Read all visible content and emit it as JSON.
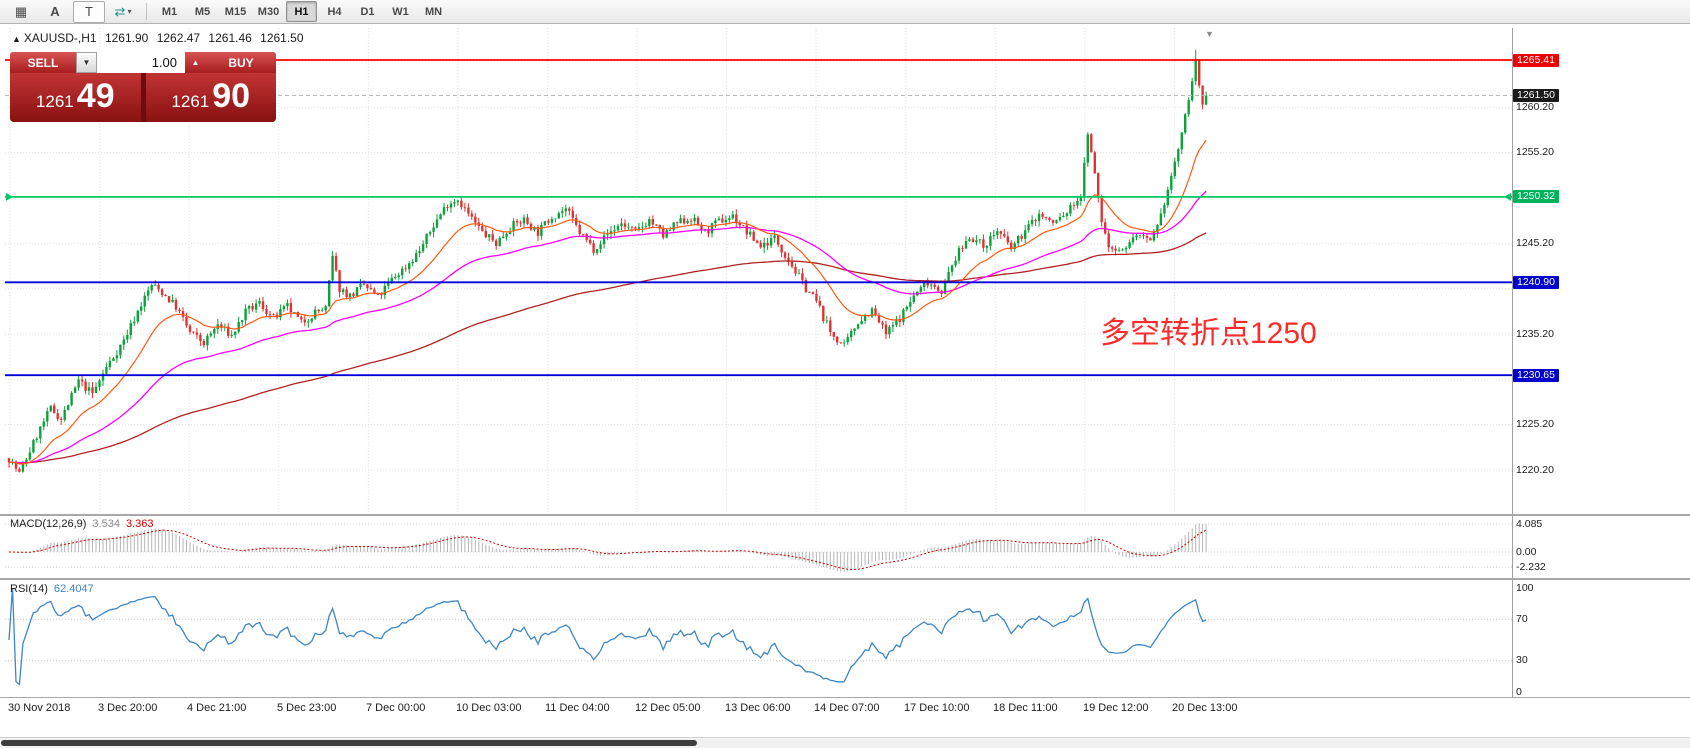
{
  "toolbar": {
    "icons": [
      {
        "name": "grid-icon",
        "glyph": "▦"
      },
      {
        "name": "font-icon",
        "glyph": "A"
      },
      {
        "name": "text-label-icon",
        "glyph": "T"
      },
      {
        "name": "cycle-arrows-icon",
        "glyph": "⇄",
        "caret": "▾"
      }
    ],
    "timeframes": [
      {
        "label": "M1",
        "active": false
      },
      {
        "label": "M5",
        "active": false
      },
      {
        "label": "M15",
        "active": false
      },
      {
        "label": "M30",
        "active": false
      },
      {
        "label": "H1",
        "active": true
      },
      {
        "label": "H4",
        "active": false
      },
      {
        "label": "D1",
        "active": false
      },
      {
        "label": "W1",
        "active": false
      },
      {
        "label": "MN",
        "active": false
      }
    ]
  },
  "chart": {
    "header": {
      "direction_arrow": "▲",
      "symbol_period": "XAUUSD-,H1",
      "open": "1261.90",
      "high": "1262.47",
      "low": "1261.46",
      "close": "1261.50"
    },
    "shift_marker_glyph": "▼",
    "trade_panel": {
      "sell_label": "SELL",
      "buy_label": "BUY",
      "volume": "1.00",
      "decrease_icon": "▼",
      "increase_icon": "▲",
      "sell_price_main": "1261",
      "sell_price_pips": "49",
      "buy_price_main": "1261",
      "buy_price_pips": "90"
    },
    "annotation": {
      "text": "多空转折点1250",
      "color": "#ff2b2b"
    }
  },
  "macd": {
    "name": "MACD(12,26,9)",
    "main_value": "3.534",
    "signal_value": "3.363",
    "scale": [
      "4.085",
      "0.00",
      "-2.232"
    ]
  },
  "rsi": {
    "name": "RSI(14)",
    "value": "62.4047",
    "scale": [
      "100",
      "70",
      "30",
      "0"
    ],
    "levels": [
      70,
      30
    ]
  },
  "colors": {
    "candle_up": "#0ca13a",
    "candle_down": "#e03232",
    "ma_fast": "#ff5a14",
    "ma_mid": "#ff00ff",
    "ma_slow": "#b22222",
    "macd_hist": "#b4b4b4",
    "macd_signal": "#d40000",
    "rsi_line": "#3e86c6",
    "grid": "#e2e2e2"
  },
  "chart_data": {
    "type": "candlestick",
    "symbol": "XAUUSD-",
    "timeframe": "H1",
    "ohlc_current": {
      "open": 1261.9,
      "high": 1262.47,
      "low": 1261.46,
      "close": 1261.5
    },
    "ylim": [
      1215.5,
      1268.9
    ],
    "y_grid_interval": 5.0,
    "grid_levels": [
      1220.2,
      1225.2,
      1230.2,
      1235.2,
      1240.2,
      1245.2,
      1250.2,
      1255.2,
      1260.2,
      1265.2
    ],
    "axis_price_labels": [
      "1260.20",
      "1255.20",
      "1245.20",
      "1235.20",
      "1225.20",
      "1220.20"
    ],
    "x_labels": [
      "30 Nov 2018",
      "3 Dec 20:00",
      "4 Dec 21:00",
      "5 Dec 23:00",
      "7 Dec 00:00",
      "10 Dec 03:00",
      "11 Dec 04:00",
      "12 Dec 05:00",
      "13 Dec 06:00",
      "14 Dec 07:00",
      "17 Dec 10:00",
      "18 Dec 11:00",
      "19 Dec 12:00",
      "20 Dec 13:00"
    ],
    "candles_count": 345,
    "price_anchors": [
      [
        0,
        1221.5
      ],
      [
        3,
        1219.8
      ],
      [
        8,
        1224.0
      ],
      [
        12,
        1227.0
      ],
      [
        15,
        1225.8
      ],
      [
        20,
        1230.0
      ],
      [
        24,
        1228.6
      ],
      [
        28,
        1231.5
      ],
      [
        33,
        1234.5
      ],
      [
        38,
        1238.5
      ],
      [
        41,
        1240.6
      ],
      [
        44,
        1239.8
      ],
      [
        48,
        1238.2
      ],
      [
        52,
        1235.4
      ],
      [
        56,
        1234.2
      ],
      [
        60,
        1236.2
      ],
      [
        64,
        1235.0
      ],
      [
        68,
        1237.6
      ],
      [
        72,
        1238.6
      ],
      [
        76,
        1236.9
      ],
      [
        80,
        1238.2
      ],
      [
        84,
        1236.4
      ],
      [
        88,
        1237.6
      ],
      [
        91,
        1238.0
      ],
      [
        93,
        1243.6
      ],
      [
        95,
        1240.2
      ],
      [
        98,
        1239.4
      ],
      [
        102,
        1240.6
      ],
      [
        106,
        1239.2
      ],
      [
        110,
        1241.2
      ],
      [
        114,
        1242.6
      ],
      [
        118,
        1244.4
      ],
      [
        122,
        1247.2
      ],
      [
        126,
        1249.6
      ],
      [
        129,
        1250.1
      ],
      [
        132,
        1248.4
      ],
      [
        136,
        1246.4
      ],
      [
        140,
        1245.2
      ],
      [
        144,
        1247.0
      ],
      [
        148,
        1247.8
      ],
      [
        152,
        1246.4
      ],
      [
        156,
        1248.2
      ],
      [
        160,
        1249.0
      ],
      [
        164,
        1246.4
      ],
      [
        168,
        1244.6
      ],
      [
        172,
        1246.2
      ],
      [
        176,
        1247.4
      ],
      [
        180,
        1246.4
      ],
      [
        184,
        1247.8
      ],
      [
        188,
        1246.0
      ],
      [
        192,
        1247.4
      ],
      [
        196,
        1248.0
      ],
      [
        200,
        1246.4
      ],
      [
        204,
        1247.6
      ],
      [
        208,
        1248.2
      ],
      [
        212,
        1246.4
      ],
      [
        216,
        1244.9
      ],
      [
        220,
        1245.8
      ],
      [
        224,
        1243.4
      ],
      [
        228,
        1240.8
      ],
      [
        232,
        1238.8
      ],
      [
        236,
        1235.4
      ],
      [
        240,
        1233.8
      ],
      [
        244,
        1236.6
      ],
      [
        248,
        1237.8
      ],
      [
        252,
        1235.2
      ],
      [
        256,
        1237.0
      ],
      [
        260,
        1239.4
      ],
      [
        264,
        1241.0
      ],
      [
        268,
        1240.0
      ],
      [
        272,
        1243.6
      ],
      [
        276,
        1246.0
      ],
      [
        280,
        1244.9
      ],
      [
        284,
        1246.6
      ],
      [
        288,
        1244.6
      ],
      [
        292,
        1246.6
      ],
      [
        296,
        1248.4
      ],
      [
        300,
        1247.4
      ],
      [
        304,
        1248.6
      ],
      [
        308,
        1250.4
      ],
      [
        310,
        1257.4
      ],
      [
        312,
        1252.8
      ],
      [
        314,
        1247.6
      ],
      [
        316,
        1244.8
      ],
      [
        320,
        1244.4
      ],
      [
        324,
        1246.2
      ],
      [
        328,
        1245.4
      ],
      [
        330,
        1247.0
      ],
      [
        332,
        1249.6
      ],
      [
        334,
        1252.6
      ],
      [
        336,
        1255.6
      ],
      [
        338,
        1259.2
      ],
      [
        340,
        1263.2
      ],
      [
        341,
        1265.2
      ],
      [
        342,
        1262.4
      ],
      [
        343,
        1260.6
      ],
      [
        344,
        1261.5
      ]
    ],
    "horizontal_lines": [
      {
        "price": 1261.5,
        "label": "1261.50",
        "color": "#b8b8b8",
        "badge": "#1b1b1b",
        "style": "dashed",
        "width": 1
      },
      {
        "price": 1265.41,
        "label": "1265.41",
        "color": "#ff0000",
        "badge": "#ee0000",
        "style": "solid",
        "width": 1.8
      },
      {
        "price": 1250.32,
        "label": "1250.32",
        "color": "#00c864",
        "badge": "#00b25c",
        "style": "solid",
        "width": 1.8,
        "arrows": true
      },
      {
        "price": 1240.9,
        "label": "1240.90",
        "color": "#0000dc",
        "badge": "#0000cc",
        "style": "solid",
        "width": 1.8
      },
      {
        "price": 1230.65,
        "label": "1230.65",
        "color": "#0000dc",
        "badge": "#0000cc",
        "style": "solid",
        "width": 1.8
      }
    ],
    "moving_averages": [
      {
        "period": 18,
        "color": "#ff5a14"
      },
      {
        "period": 55,
        "color": "#ff00ff"
      },
      {
        "period": 160,
        "color": "#b22222"
      }
    ],
    "indicators": [
      {
        "name": "MACD",
        "params": [
          12,
          26,
          9
        ],
        "main": 3.534,
        "signal": 3.363,
        "scale": [
          4.085,
          0.0,
          -2.232
        ]
      },
      {
        "name": "RSI",
        "params": [
          14
        ],
        "value": 62.4047,
        "scale": [
          100,
          70,
          30,
          0
        ]
      }
    ],
    "annotation": "多空转折点1250"
  }
}
